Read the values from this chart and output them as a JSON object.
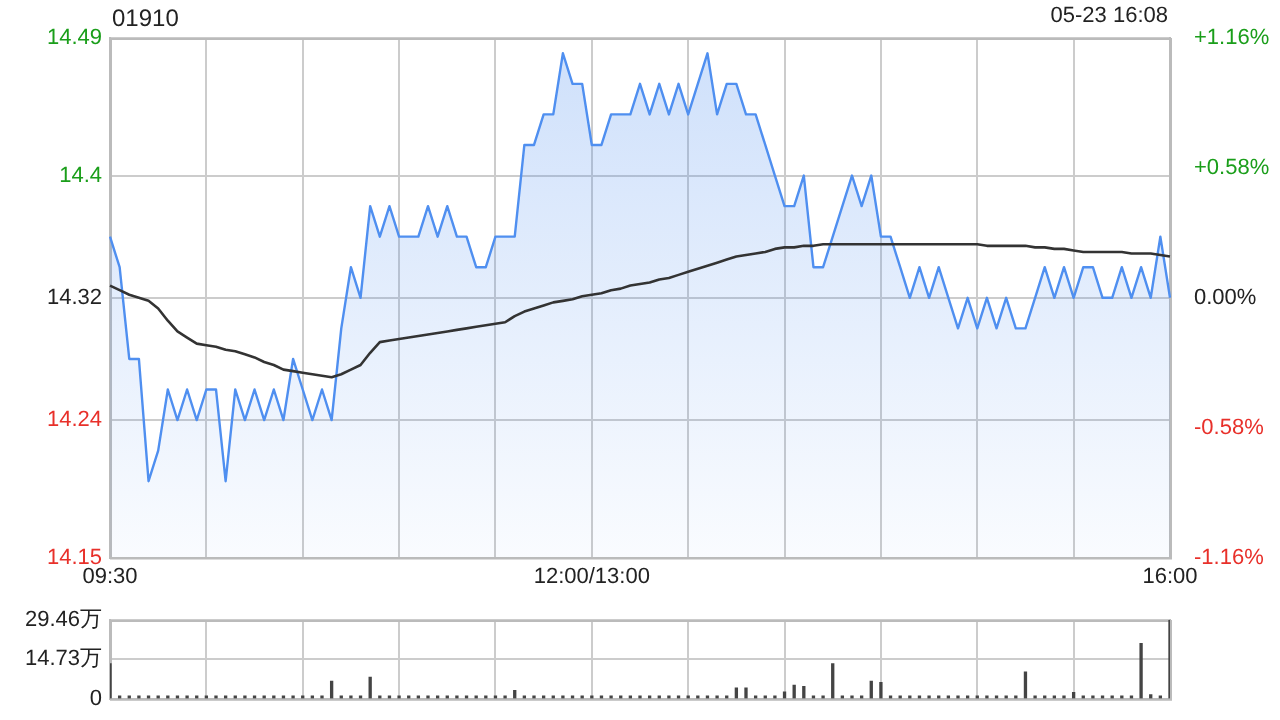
{
  "chart_data": [
    {
      "type": "line",
      "title": "01910",
      "annotations": [
        "05-23 16:08"
      ],
      "categories": [
        "09:30",
        null,
        null,
        null,
        null,
        null,
        null,
        null,
        null,
        null,
        null,
        null,
        null,
        null,
        null,
        null,
        null,
        null,
        null,
        null,
        null,
        null,
        null,
        null,
        null,
        null,
        null,
        null,
        null,
        null,
        null,
        null,
        null,
        null,
        null,
        null,
        null,
        null,
        null,
        null,
        null,
        null,
        null,
        null,
        null,
        null,
        null,
        null,
        null,
        null,
        "12:00/13:00",
        null,
        null,
        null,
        null,
        null,
        null,
        null,
        null,
        null,
        null,
        null,
        null,
        null,
        null,
        null,
        null,
        null,
        null,
        null,
        null,
        null,
        null,
        null,
        null,
        null,
        null,
        null,
        null,
        null,
        null,
        null,
        null,
        null,
        null,
        null,
        null,
        null,
        null,
        null,
        null,
        null,
        null,
        null,
        null,
        null,
        null,
        null,
        null,
        null,
        null,
        null,
        null,
        null,
        null,
        null,
        null,
        null,
        null,
        null,
        "16:00"
      ],
      "ylim": [
        14.15,
        14.49
      ],
      "yticks": [
        14.15,
        14.24,
        14.32,
        14.4,
        14.49
      ],
      "y2lim": [
        -1.16,
        1.16
      ],
      "y2ticks": [
        {
          "value": -1.16,
          "label": "-1.16%"
        },
        {
          "value": -0.58,
          "label": "-0.58%"
        },
        {
          "value": 0,
          "label": "0.00%"
        },
        {
          "value": 0.58,
          "label": "+0.58%"
        },
        {
          "value": 1.16,
          "label": "+1.16%"
        }
      ],
      "grid": true,
      "legend": false,
      "series": [
        {
          "type": "area",
          "color": "#4f8ff0",
          "values": [
            14.36,
            14.34,
            14.28,
            14.28,
            14.2,
            14.22,
            14.26,
            14.24,
            14.26,
            14.24,
            14.26,
            14.26,
            14.2,
            14.26,
            14.24,
            14.26,
            14.24,
            14.26,
            14.24,
            14.28,
            14.26,
            14.24,
            14.26,
            14.24,
            14.3,
            14.34,
            14.32,
            14.38,
            14.36,
            14.38,
            14.36,
            14.36,
            14.36,
            14.38,
            14.36,
            14.38,
            14.36,
            14.36,
            14.34,
            14.34,
            14.36,
            14.36,
            14.36,
            14.42,
            14.42,
            14.44,
            14.44,
            14.48,
            14.46,
            14.46,
            14.42,
            14.42,
            14.44,
            14.44,
            14.44,
            14.46,
            14.44,
            14.46,
            14.44,
            14.46,
            14.44,
            14.46,
            14.48,
            14.44,
            14.46,
            14.46,
            14.44,
            14.44,
            14.42,
            14.4,
            14.38,
            14.38,
            14.4,
            14.34,
            14.34,
            14.36,
            14.38,
            14.4,
            14.38,
            14.4,
            14.36,
            14.36,
            14.34,
            14.32,
            14.34,
            14.32,
            14.34,
            14.32,
            14.3,
            14.32,
            14.3,
            14.32,
            14.3,
            14.32,
            14.3,
            14.3,
            14.32,
            14.34,
            14.32,
            14.34,
            14.32,
            14.34,
            14.34,
            14.32,
            14.32,
            14.34,
            14.32,
            14.34,
            14.32,
            14.36,
            14.32
          ]
        },
        {
          "type": "line",
          "color": "#333333",
          "values": [
            14.328,
            14.325,
            14.322,
            14.32,
            14.318,
            14.313,
            14.305,
            14.298,
            14.294,
            14.29,
            14.289,
            14.288,
            14.286,
            14.285,
            14.283,
            14.281,
            14.278,
            14.276,
            14.273,
            14.272,
            14.271,
            14.27,
            14.269,
            14.268,
            14.27,
            14.273,
            14.276,
            14.284,
            14.291,
            14.292,
            14.293,
            14.294,
            14.295,
            14.296,
            14.297,
            14.298,
            14.299,
            14.3,
            14.301,
            14.302,
            14.303,
            14.304,
            14.308,
            14.311,
            14.313,
            14.315,
            14.317,
            14.318,
            14.319,
            14.321,
            14.322,
            14.323,
            14.325,
            14.326,
            14.328,
            14.329,
            14.33,
            14.332,
            14.333,
            14.335,
            14.337,
            14.339,
            14.341,
            14.343,
            14.345,
            14.347,
            14.348,
            14.349,
            14.35,
            14.352,
            14.353,
            14.353,
            14.354,
            14.354,
            14.355,
            14.355,
            14.355,
            14.355,
            14.355,
            14.355,
            14.355,
            14.355,
            14.355,
            14.355,
            14.355,
            14.355,
            14.355,
            14.355,
            14.355,
            14.355,
            14.355,
            14.354,
            14.354,
            14.354,
            14.354,
            14.354,
            14.353,
            14.353,
            14.352,
            14.352,
            14.351,
            14.35,
            14.35,
            14.35,
            14.35,
            14.35,
            14.349,
            14.349,
            14.349,
            14.348,
            14.347
          ]
        }
      ]
    },
    {
      "type": "bar",
      "categories": [
        null,
        null,
        null,
        null,
        null,
        null,
        null,
        null,
        null,
        null,
        null,
        null,
        null,
        null,
        null,
        null,
        null,
        null,
        null,
        null,
        null,
        null,
        null,
        null,
        null,
        null,
        null,
        null,
        null,
        null,
        null,
        null,
        null,
        null,
        null,
        null,
        null,
        null,
        null,
        null,
        null,
        null,
        null,
        null,
        null,
        null,
        null,
        null,
        null,
        null,
        null,
        null,
        null,
        null,
        null,
        null,
        null,
        null,
        null,
        null,
        null,
        null,
        null,
        null,
        null,
        null,
        null,
        null,
        null,
        null,
        null,
        null,
        null,
        null,
        null,
        null,
        null,
        null,
        null,
        null,
        null,
        null,
        null,
        null,
        null,
        null,
        null,
        null,
        null,
        null,
        null,
        null,
        null,
        null,
        null,
        null,
        null,
        null,
        null,
        null,
        null,
        null,
        null,
        null,
        null,
        null,
        null,
        null,
        null,
        null,
        null
      ],
      "ylim": [
        0,
        29.46
      ],
      "yticks": [
        {
          "value": 0,
          "label": "0"
        },
        {
          "value": 14.73,
          "label": "14.73万"
        },
        {
          "value": 29.46,
          "label": "29.46万"
        }
      ],
      "grid": true,
      "legend": false,
      "tick_labels": "y",
      "color": "#444444",
      "values": [
        13,
        1,
        1,
        1,
        1,
        1,
        1,
        1,
        1,
        1,
        1,
        1,
        1,
        1,
        1,
        1,
        1,
        1,
        1,
        1,
        1,
        1,
        1,
        6.5,
        1,
        1,
        1,
        8,
        1,
        1,
        1,
        1,
        1,
        1,
        1,
        1,
        1,
        1,
        1,
        1,
        1,
        1,
        3,
        1,
        1,
        1,
        1,
        1,
        1,
        1,
        1,
        1,
        1,
        1,
        1,
        1,
        1,
        1,
        1,
        1,
        1,
        1,
        1,
        1,
        1,
        4,
        4,
        1,
        1,
        1,
        2.5,
        5,
        4.5,
        1,
        1,
        13,
        1,
        1,
        1,
        6.5,
        6,
        1,
        1,
        1,
        1,
        1,
        1,
        1,
        1,
        1,
        1,
        1,
        1,
        1,
        1,
        10,
        1,
        1,
        1,
        1,
        2.3,
        1,
        1,
        1,
        1,
        1,
        1,
        20.6,
        1.5,
        1,
        29.4
      ]
    }
  ]
}
